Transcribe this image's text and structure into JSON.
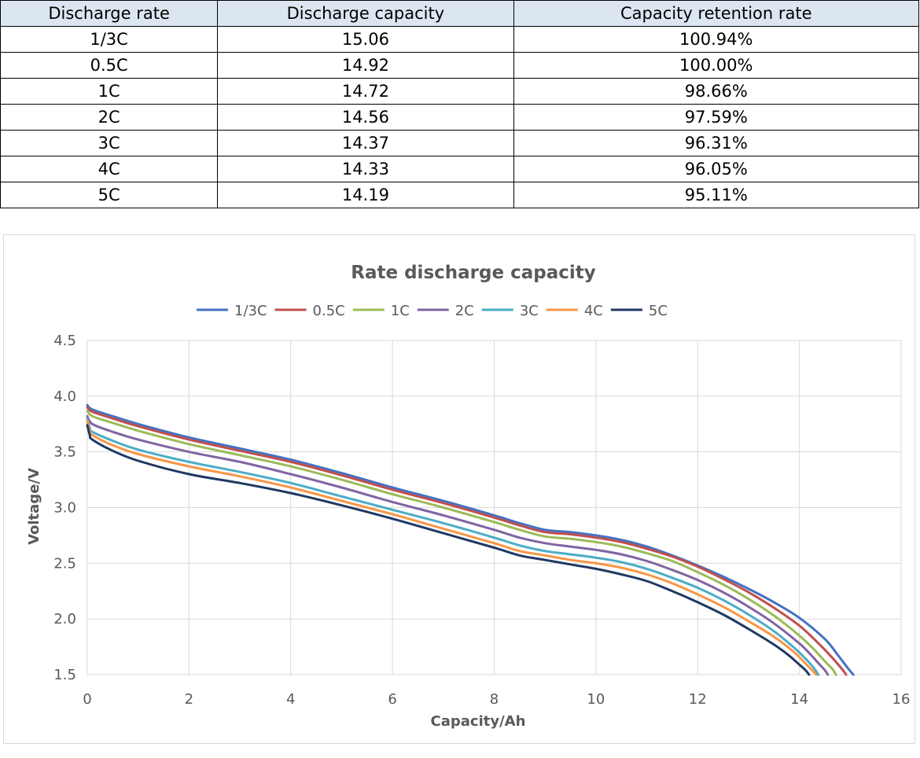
{
  "table": {
    "headers": [
      "Discharge rate",
      "Discharge capacity",
      "Capacity retention rate"
    ],
    "rows": [
      [
        "1/3C",
        "15.06",
        "100.94%"
      ],
      [
        "0.5C",
        "14.92",
        "100.00%"
      ],
      [
        "1C",
        "14.72",
        "98.66%"
      ],
      [
        "2C",
        "14.56",
        "97.59%"
      ],
      [
        "3C",
        "14.37",
        "96.31%"
      ],
      [
        "4C",
        "14.33",
        "96.05%"
      ],
      [
        "5C",
        "14.19",
        "95.11%"
      ]
    ]
  },
  "chart_data": {
    "type": "line",
    "title": "Rate discharge capacity",
    "xlabel": "Capacity/Ah",
    "ylabel": "Voltage/V",
    "xlim": [
      0,
      16
    ],
    "ylim": [
      1.5,
      4.5
    ],
    "xticks": [
      0,
      2,
      4,
      6,
      8,
      10,
      12,
      14,
      16
    ],
    "yticks": [
      1.5,
      2.0,
      2.5,
      3.0,
      3.5,
      4.0,
      4.5
    ],
    "ytick_labels": [
      "1.5",
      "2.0",
      "2.5",
      "3.0",
      "3.5",
      "4.0",
      "4.5"
    ],
    "grid": true,
    "legend_position": "top",
    "series": [
      {
        "name": "1/3C",
        "color": "#4472c4",
        "x": [
          0,
          0.1,
          0.5,
          1,
          2,
          3,
          4,
          5,
          6,
          7,
          8,
          8.5,
          9,
          9.5,
          10,
          10.5,
          11,
          11.5,
          12,
          12.5,
          13,
          13.5,
          14,
          14.5,
          14.75,
          14.95,
          15.06
        ],
        "y": [
          3.92,
          3.88,
          3.82,
          3.75,
          3.63,
          3.53,
          3.43,
          3.31,
          3.18,
          3.06,
          2.93,
          2.86,
          2.8,
          2.78,
          2.75,
          2.71,
          2.65,
          2.57,
          2.48,
          2.38,
          2.27,
          2.15,
          2.01,
          1.82,
          1.68,
          1.56,
          1.5
        ]
      },
      {
        "name": "0.5C",
        "color": "#c0504d",
        "x": [
          0,
          0.1,
          0.5,
          1,
          2,
          3,
          4,
          5,
          6,
          7,
          8,
          8.5,
          9,
          9.5,
          10,
          10.5,
          11,
          11.5,
          12,
          12.5,
          13,
          13.5,
          14,
          14.4,
          14.65,
          14.82,
          14.92
        ],
        "y": [
          3.9,
          3.86,
          3.8,
          3.73,
          3.61,
          3.51,
          3.41,
          3.29,
          3.16,
          3.04,
          2.91,
          2.84,
          2.78,
          2.76,
          2.73,
          2.69,
          2.63,
          2.56,
          2.47,
          2.36,
          2.24,
          2.1,
          1.94,
          1.77,
          1.65,
          1.56,
          1.5
        ]
      },
      {
        "name": "1C",
        "color": "#9bbb59",
        "x": [
          0,
          0.1,
          0.5,
          1,
          2,
          3,
          4,
          5,
          6,
          7,
          8,
          8.5,
          9,
          9.5,
          10,
          10.5,
          11,
          11.5,
          12,
          12.5,
          13,
          13.5,
          14,
          14.3,
          14.5,
          14.65,
          14.72
        ],
        "y": [
          3.87,
          3.82,
          3.76,
          3.69,
          3.57,
          3.47,
          3.37,
          3.25,
          3.12,
          3.0,
          2.87,
          2.8,
          2.74,
          2.72,
          2.69,
          2.65,
          2.59,
          2.52,
          2.42,
          2.31,
          2.18,
          2.03,
          1.85,
          1.72,
          1.62,
          1.55,
          1.5
        ]
      },
      {
        "name": "2C",
        "color": "#8064a2",
        "x": [
          0,
          0.1,
          0.5,
          1,
          2,
          3,
          4,
          5,
          6,
          7,
          8,
          8.5,
          9,
          9.5,
          10,
          10.5,
          11,
          11.5,
          12,
          12.5,
          13,
          13.5,
          14,
          14.2,
          14.38,
          14.5,
          14.56
        ],
        "y": [
          3.82,
          3.75,
          3.68,
          3.61,
          3.5,
          3.41,
          3.3,
          3.18,
          3.05,
          2.93,
          2.8,
          2.73,
          2.68,
          2.65,
          2.62,
          2.58,
          2.52,
          2.44,
          2.35,
          2.24,
          2.11,
          1.96,
          1.78,
          1.69,
          1.6,
          1.54,
          1.5
        ]
      },
      {
        "name": "3C",
        "color": "#4bacc6",
        "x": [
          0,
          0.05,
          0.1,
          0.5,
          1,
          2,
          3,
          4,
          5,
          6,
          7,
          8,
          8.5,
          9,
          9.5,
          10,
          10.5,
          11,
          11.5,
          12,
          12.5,
          13,
          13.5,
          13.9,
          14.15,
          14.3,
          14.37
        ],
        "y": [
          3.8,
          3.72,
          3.68,
          3.6,
          3.52,
          3.41,
          3.32,
          3.22,
          3.1,
          2.98,
          2.86,
          2.73,
          2.66,
          2.61,
          2.58,
          2.55,
          2.51,
          2.45,
          2.37,
          2.28,
          2.17,
          2.04,
          1.89,
          1.74,
          1.63,
          1.55,
          1.5
        ]
      },
      {
        "name": "4C",
        "color": "#f79646",
        "x": [
          0,
          0.05,
          0.1,
          0.5,
          1,
          2,
          3,
          4,
          5,
          6,
          7,
          8,
          8.5,
          9,
          9.5,
          10,
          10.5,
          11,
          11.5,
          12,
          12.5,
          13,
          13.5,
          13.9,
          14.1,
          14.25,
          14.33
        ],
        "y": [
          3.78,
          3.69,
          3.65,
          3.56,
          3.48,
          3.37,
          3.28,
          3.18,
          3.06,
          2.94,
          2.81,
          2.68,
          2.61,
          2.57,
          2.53,
          2.5,
          2.46,
          2.4,
          2.32,
          2.22,
          2.11,
          1.98,
          1.84,
          1.7,
          1.61,
          1.54,
          1.5
        ]
      },
      {
        "name": "5C",
        "color": "#1f3864",
        "x": [
          0,
          0.05,
          0.1,
          0.5,
          1,
          2,
          3,
          4,
          5,
          6,
          7,
          8,
          8.5,
          9,
          9.5,
          10,
          10.5,
          11,
          11.5,
          12,
          12.5,
          13,
          13.5,
          13.8,
          14.0,
          14.12,
          14.19
        ],
        "y": [
          3.74,
          3.65,
          3.61,
          3.51,
          3.42,
          3.3,
          3.22,
          3.13,
          3.02,
          2.9,
          2.77,
          2.64,
          2.57,
          2.53,
          2.49,
          2.45,
          2.4,
          2.34,
          2.25,
          2.15,
          2.04,
          1.91,
          1.77,
          1.67,
          1.59,
          1.54,
          1.5
        ]
      }
    ]
  }
}
